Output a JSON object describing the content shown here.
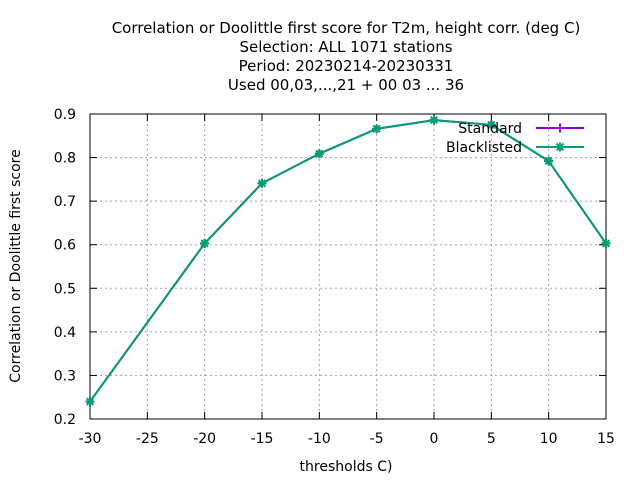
{
  "chart_data": {
    "type": "line",
    "title": [
      "Correlation or Doolittle first score  for T2m, height corr. (deg C)",
      "Selection: ALL   1071 stations",
      "Period: 20230214-20230331",
      "Used  00,03,...,21  + 00 03 ... 36"
    ],
    "xlabel": "thresholds C)",
    "ylabel": "Correlation or Doolittle first score",
    "xlim": [
      -30,
      15
    ],
    "ylim": [
      0.2,
      0.9
    ],
    "x_ticks": [
      -30,
      -25,
      -20,
      -15,
      -10,
      -5,
      0,
      5,
      10,
      15
    ],
    "y_ticks": [
      0.2,
      0.3,
      0.4,
      0.5,
      0.6,
      0.7,
      0.8,
      0.9
    ],
    "x_tick_labels": [
      "-30",
      "-25",
      "-20",
      "-15",
      "-10",
      "-5",
      "0",
      "5",
      "10",
      "15"
    ],
    "y_tick_labels": [
      "0.2",
      "0.3",
      "0.4",
      "0.5",
      "0.6",
      "0.7",
      "0.8",
      "0.9"
    ],
    "grid": true,
    "legend_position": "top-right",
    "x": [
      -30,
      -20,
      -15,
      -10,
      -5,
      0,
      5,
      10,
      15
    ],
    "series": [
      {
        "name": "Standard",
        "color": "#9400d3",
        "marker": "plus",
        "values": [
          0.24,
          0.603,
          0.741,
          0.809,
          0.866,
          0.886,
          0.875,
          0.792,
          0.603
        ]
      },
      {
        "name": "Blacklisted",
        "color": "#009e73",
        "marker": "star",
        "values": [
          0.24,
          0.603,
          0.741,
          0.809,
          0.866,
          0.886,
          0.875,
          0.792,
          0.603
        ]
      }
    ]
  }
}
